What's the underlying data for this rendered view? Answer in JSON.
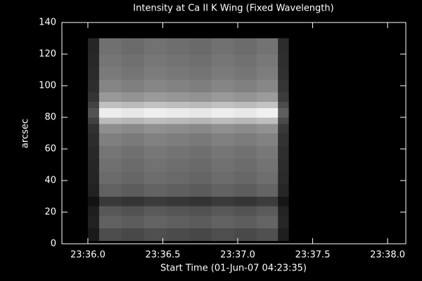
{
  "chart_data": {
    "type": "heatmap",
    "title": "Intensity at Ca II K Wing (Fixed Wavelength)",
    "xlabel": "Start Time (01-Jun-07 04:23:35)",
    "ylabel": "arcsec",
    "xlim": [
      -10.4,
      127.3
    ],
    "ylim": [
      0,
      140
    ],
    "xticks": [
      {
        "value": 0,
        "label": "23:36.0"
      },
      {
        "value": 30,
        "label": "23:36.5"
      },
      {
        "value": 60,
        "label": "23:37.0"
      },
      {
        "value": 90,
        "label": "23:37.5"
      },
      {
        "value": 120,
        "label": "23:38.0"
      }
    ],
    "yticks": [
      0,
      20,
      40,
      60,
      80,
      100,
      120,
      140
    ],
    "zlim": [
      0,
      255
    ],
    "x_edges": [
      0,
      4.5,
      13.5,
      22.5,
      31.5,
      40.5,
      49.5,
      58.5,
      67.5,
      76.1,
      80.3
    ],
    "y_edges": [
      2,
      10,
      18,
      24,
      30,
      38,
      46,
      54,
      62,
      70,
      76,
      80,
      86,
      90,
      96,
      104,
      112,
      120,
      130
    ],
    "z": [
      [
        26,
        77,
        72,
        79,
        75,
        71,
        78,
        73,
        80,
        30
      ],
      [
        33,
        97,
        92,
        99,
        95,
        91,
        98,
        93,
        100,
        38
      ],
      [
        30,
        87,
        82,
        89,
        85,
        81,
        88,
        83,
        90,
        34
      ],
      [
        19,
        57,
        52,
        59,
        55,
        51,
        58,
        53,
        60,
        22
      ],
      [
        33,
        97,
        92,
        99,
        95,
        91,
        98,
        93,
        100,
        38
      ],
      [
        37,
        107,
        102,
        109,
        105,
        101,
        108,
        103,
        110,
        42
      ],
      [
        38,
        112,
        107,
        114,
        110,
        106,
        113,
        108,
        115,
        44
      ],
      [
        40,
        117,
        112,
        119,
        115,
        111,
        118,
        113,
        120,
        46
      ],
      [
        44,
        127,
        122,
        129,
        125,
        121,
        128,
        123,
        130,
        50
      ],
      [
        49,
        142,
        137,
        144,
        140,
        136,
        143,
        138,
        145,
        56
      ],
      [
        65,
        187,
        182,
        189,
        185,
        181,
        188,
        183,
        190,
        74
      ],
      [
        82,
        237,
        232,
        239,
        235,
        231,
        238,
        233,
        240,
        94
      ],
      [
        66,
        192,
        187,
        194,
        190,
        186,
        193,
        188,
        195,
        76
      ],
      [
        52,
        152,
        147,
        154,
        150,
        146,
        153,
        148,
        155,
        60
      ],
      [
        45,
        132,
        127,
        134,
        130,
        126,
        133,
        128,
        135,
        52
      ],
      [
        42,
        122,
        117,
        124,
        120,
        116,
        123,
        118,
        125,
        48
      ],
      [
        40,
        117,
        112,
        119,
        115,
        111,
        118,
        113,
        120,
        46
      ],
      [
        38,
        112,
        107,
        114,
        110,
        106,
        113,
        108,
        115,
        44
      ]
    ]
  }
}
